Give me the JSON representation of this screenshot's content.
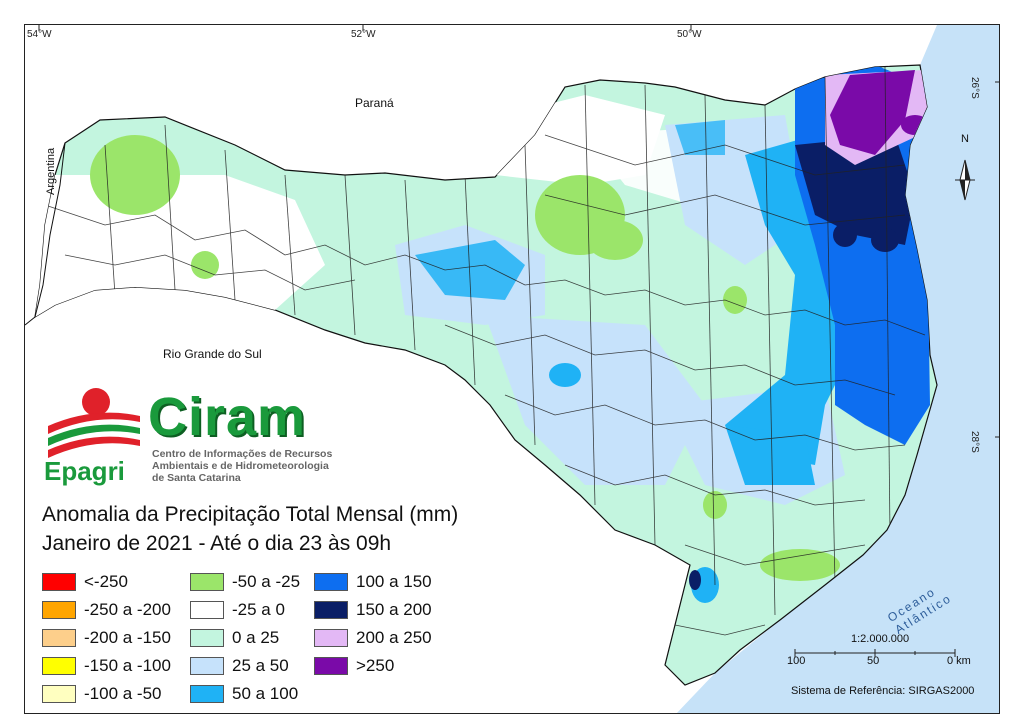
{
  "map": {
    "lon_ticks": [
      "54°W",
      "52°W",
      "50°W"
    ],
    "lat_ticks": [
      "26°S",
      "28°S"
    ],
    "places": {
      "parana": "Paraná",
      "argentina": "Argentina",
      "rs": "Rio Grande do Sul",
      "ocean": "Oceano Atlântico"
    },
    "north_label": "N"
  },
  "logo": {
    "brand": "Ciram",
    "agency": "Epagri",
    "subtitle_lines": [
      "Centro de Informações de Recursos",
      "Ambientais e de Hidrometeorologia",
      "de Santa Catarina"
    ]
  },
  "title": {
    "line1": "Anomalia da Precipitação Total Mensal (mm)",
    "line2": "Janeiro de 2021 - Até o dia 23 às 09h"
  },
  "legend": [
    {
      "label": "<-250",
      "color": "#ff0000"
    },
    {
      "label": "-250 a -200",
      "color": "#ffa500"
    },
    {
      "label": "-200 a -150",
      "color": "#fdcf8b"
    },
    {
      "label": "-150 a -100",
      "color": "#ffff00"
    },
    {
      "label": "-100 a -50",
      "color": "#ffffc0"
    },
    {
      "label": "-50 a -25",
      "color": "#9be56a"
    },
    {
      "label": "-25 a 0",
      "color": "#ffffff"
    },
    {
      "label": "0 a 25",
      "color": "#c3f5df"
    },
    {
      "label": "25 a 50",
      "color": "#c6e2fb"
    },
    {
      "label": "50 a 100",
      "color": "#1fb2f5"
    },
    {
      "label": "100 a 150",
      "color": "#0d6ef0"
    },
    {
      "label": "150 a 200",
      "color": "#0a1e66"
    },
    {
      "label": "200 a 250",
      "color": "#e3b8f5"
    },
    {
      "label": ">250",
      "color": "#7a0aa8"
    }
  ],
  "scale": {
    "ratio": "1:2.000.000",
    "labels": [
      "100",
      "50",
      "0 km"
    ],
    "crs": "Sistema de Referência: SIRGAS2000"
  }
}
